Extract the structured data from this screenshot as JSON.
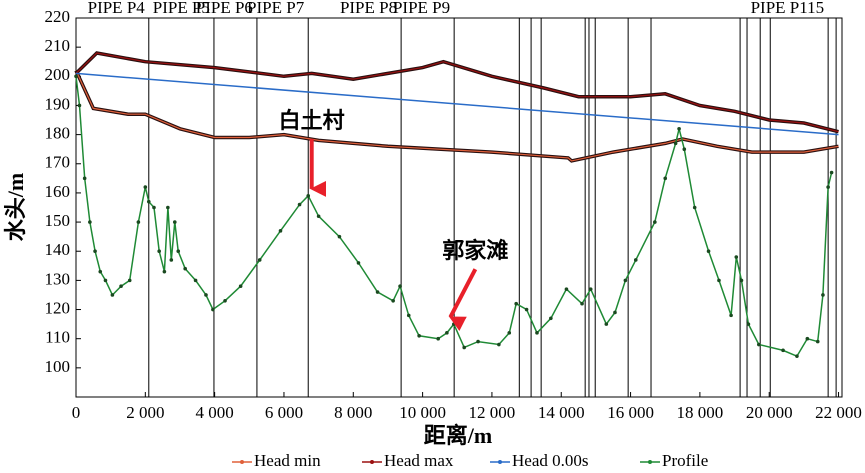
{
  "chart_data": {
    "type": "line",
    "xlabel": "距离/m",
    "ylabel": "水头/m",
    "xlim": [
      0,
      22100
    ],
    "ylim": [
      90,
      220
    ],
    "xticks": [
      0,
      {
        "value": 2000,
        "label": "2 000"
      },
      {
        "value": 4000,
        "label": "4 000"
      },
      {
        "value": 6000,
        "label": "6 000"
      },
      {
        "value": 8000,
        "label": "8 000"
      },
      {
        "value": 10000,
        "label": "10 000"
      },
      {
        "value": 12000,
        "label": "12 000"
      },
      {
        "value": 14000,
        "label": "14 000"
      },
      {
        "value": 16000,
        "label": "16 000"
      },
      {
        "value": 18000,
        "label": "18 000"
      },
      {
        "value": 20000,
        "label": "20 000"
      },
      {
        "value": 22000,
        "label": "22 000"
      }
    ],
    "yticks": [
      100,
      110,
      120,
      130,
      140,
      150,
      160,
      170,
      180,
      190,
      200,
      210,
      220
    ],
    "pipes": [
      {
        "label": "PIPE P4",
        "x": 2100
      },
      {
        "label": "PIPE P5",
        "x": 3980
      },
      {
        "label": "PIPE P6",
        "x": 5220
      },
      {
        "label": "PIPE P7",
        "x": 6700
      },
      {
        "label": "PIPE P8",
        "x": 9380
      },
      {
        "label": "PIPE P9",
        "x": 10910
      },
      {
        "label": "PIPE P115",
        "x": 21700
      }
    ],
    "other_pipe_x": [
      12790,
      13130,
      13420,
      14690,
      14800,
      14980,
      15930,
      16590,
      19160,
      19360,
      19740,
      20030,
      21930
    ],
    "annotations": [
      {
        "text": "白土村",
        "x": 6800,
        "y": 160
      },
      {
        "text": "郭家滩",
        "x": 10800,
        "y": 116
      }
    ],
    "series": [
      {
        "name": "Head min",
        "color": "#e0603a",
        "x": [
          0,
          500,
          1500,
          2000,
          3000,
          4000,
          5000,
          6000,
          7000,
          9000,
          12000,
          14200,
          14300,
          15500,
          17000,
          17500,
          18500,
          19500,
          21000,
          22000
        ],
        "values": [
          202,
          189,
          187,
          187,
          182,
          179,
          179,
          180,
          178,
          176,
          174,
          172,
          171,
          174,
          177,
          178.5,
          176,
          174,
          174,
          176
        ]
      },
      {
        "name": "Head max",
        "color": "#9b1010",
        "x": [
          0,
          600,
          2000,
          4000,
          6000,
          6800,
          8000,
          10000,
          10600,
          12000,
          13500,
          14500,
          16000,
          17000,
          18000,
          19000,
          20000,
          21000,
          22000
        ],
        "values": [
          201,
          208,
          205,
          203,
          200,
          201,
          199,
          203,
          205,
          200,
          196,
          193,
          193,
          194,
          190,
          188,
          185,
          184,
          181
        ]
      },
      {
        "name": "Head 0.00s",
        "color": "#2a6cc8",
        "x": [
          0,
          22000
        ],
        "values": [
          201,
          180
        ]
      },
      {
        "name": "Profile",
        "color": "#1f8a35",
        "x": [
          0,
          100,
          250,
          400,
          550,
          700,
          850,
          1050,
          1300,
          1550,
          1800,
          2000,
          2100,
          2250,
          2400,
          2550,
          2650,
          2750,
          2850,
          2950,
          3150,
          3450,
          3750,
          3950,
          4300,
          4750,
          5300,
          5900,
          6450,
          6700,
          7000,
          7600,
          8150,
          8700,
          9150,
          9350,
          9600,
          9900,
          10450,
          10700,
          10900,
          11200,
          11600,
          12200,
          12500,
          12700,
          13000,
          13300,
          13700,
          14150,
          14600,
          14850,
          15300,
          15550,
          15850,
          16150,
          16700,
          17000,
          17300,
          17400,
          17550,
          17850,
          18250,
          18550,
          18900,
          19050,
          19200,
          19400,
          19700,
          20400,
          20800,
          21100,
          21400,
          21550,
          21700,
          21800
        ],
        "values": [
          200,
          190,
          165,
          150,
          140,
          133,
          130,
          125,
          128,
          130,
          150,
          162,
          157,
          155,
          140,
          133,
          155,
          137,
          150,
          140,
          134,
          130,
          125,
          120,
          123,
          128,
          137,
          147,
          156,
          159,
          152,
          145,
          136,
          126,
          123,
          128,
          118,
          111,
          110,
          112,
          115,
          107,
          109,
          108,
          112,
          122,
          120,
          112,
          117,
          127,
          122,
          127,
          115,
          119,
          130,
          137,
          150,
          165,
          177,
          182,
          175,
          155,
          140,
          130,
          118,
          138,
          130,
          115,
          108,
          106,
          104,
          110,
          109,
          125,
          162,
          167
        ]
      }
    ]
  }
}
